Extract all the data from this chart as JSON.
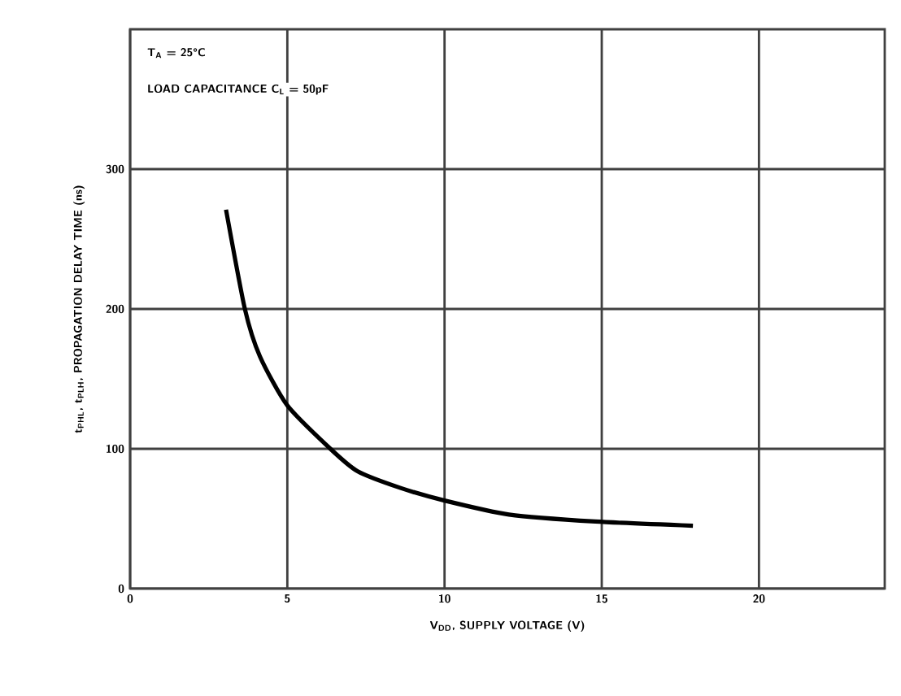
{
  "chart_data": {
    "type": "line",
    "xlabel": "V$_{DD}$, SUPPLY VOLTAGE (V)",
    "ylabel": "t$_{PHL}$, t$_{PLH}$, PROPAGATION DELAY TIME (ns)",
    "annotations": [
      "T$_{A}$ = 25°C",
      "LOAD CAPACITANCE C$_{L}$ = 50pF"
    ],
    "x": [
      3.05,
      3.65,
      4.13,
      5.0,
      6.37,
      7.23,
      8.6,
      10.0,
      12.05,
      14.8,
      17.9
    ],
    "series": [
      {
        "color": "#000000",
        "values": [
          271,
          200,
          166,
          131,
          100,
          84,
          72,
          63,
          53,
          48,
          45
        ]
      }
    ],
    "xlim": [
      0,
      24
    ],
    "ylim": [
      0,
      400
    ],
    "xticks": [
      0,
      5,
      10,
      15,
      20
    ],
    "yticks": [
      0,
      100,
      200,
      300
    ],
    "grid": true,
    "marker": "none",
    "line_style": "solid"
  }
}
